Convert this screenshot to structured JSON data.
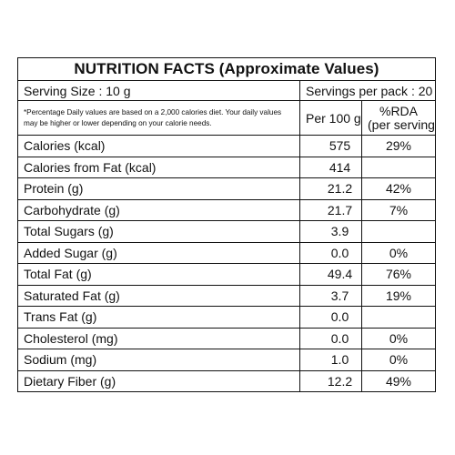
{
  "title": "NUTRITION FACTS (Approximate Values)",
  "serving_size": "Serving Size : 10 g",
  "servings_per_pack": "Servings per pack : 20",
  "footnote": "*Percentage Daily values are based on a 2,000 calories diet. Your daily values may be higher or lower depending on your calorie needs.",
  "col_per100g": "Per 100 g",
  "col_rda_line1": "%RDA",
  "col_rda_line2": "(per serving)",
  "rows": [
    {
      "name": "Calories (kcal)",
      "per100g": "575",
      "rda": "29%"
    },
    {
      "name": "Calories from Fat (kcal)",
      "per100g": "414",
      "rda": ""
    },
    {
      "name": "Protein (g)",
      "per100g": "21.2",
      "rda": "42%"
    },
    {
      "name": "Carbohydrate (g)",
      "per100g": "21.7",
      "rda": "7%"
    },
    {
      "name": "Total Sugars (g)",
      "per100g": "3.9",
      "rda": ""
    },
    {
      "name": "Added Sugar (g)",
      "per100g": "0.0",
      "rda": "0%"
    },
    {
      "name": "Total Fat (g)",
      "per100g": "49.4",
      "rda": "76%"
    },
    {
      "name": "Saturated Fat (g)",
      "per100g": "3.7",
      "rda": "19%"
    },
    {
      "name": "Trans Fat (g)",
      "per100g": "0.0",
      "rda": ""
    },
    {
      "name": "Cholesterol (mg)",
      "per100g": "0.0",
      "rda": "0%"
    },
    {
      "name": "Sodium (mg)",
      "per100g": "1.0",
      "rda": "0%"
    },
    {
      "name": "Dietary Fiber (g)",
      "per100g": "12.2",
      "rda": "49%"
    }
  ]
}
